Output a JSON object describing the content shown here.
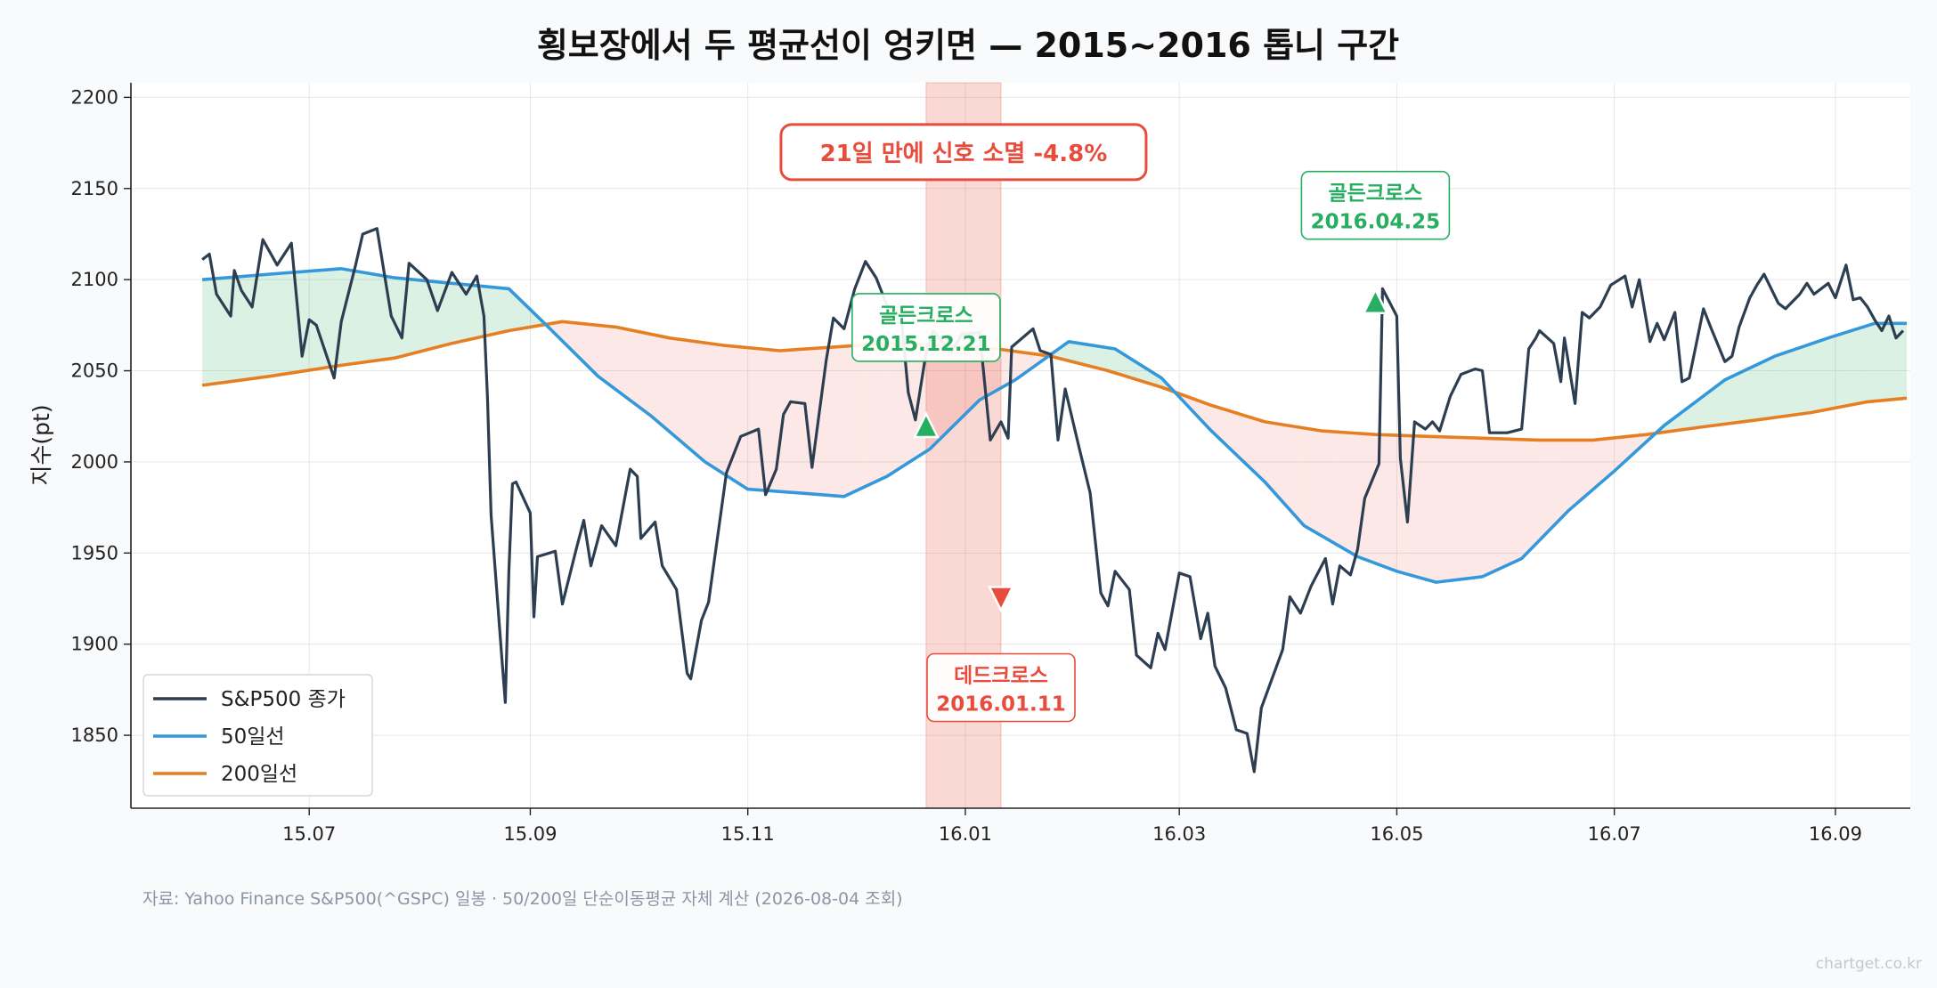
{
  "chart_data": {
    "type": "line",
    "title": "횡보장에서 두 평균선이 엉키면 — 2015~2016 톱니 구간",
    "ylabel": "지수(pt)",
    "ylim": [
      1810,
      2208
    ],
    "xlim": [
      "2015-05-12",
      "2016-09-22"
    ],
    "yticks": [
      1850,
      1900,
      1950,
      2000,
      2050,
      2100,
      2150,
      2200
    ],
    "xticks": [
      {
        "date": "2015-07-01",
        "label": "15.07"
      },
      {
        "date": "2015-09-01",
        "label": "15.09"
      },
      {
        "date": "2015-11-01",
        "label": "15.11"
      },
      {
        "date": "2016-01-01",
        "label": "16.01"
      },
      {
        "date": "2016-03-01",
        "label": "16.03"
      },
      {
        "date": "2016-05-01",
        "label": "16.05"
      },
      {
        "date": "2016-07-01",
        "label": "16.07"
      },
      {
        "date": "2016-09-01",
        "label": "16.09"
      }
    ],
    "grid": true,
    "legend_position": "lower-left",
    "series": [
      {
        "name": "S&P500 종가",
        "color": "#2c3e50",
        "points": [
          [
            "2015-06-01",
            2111
          ],
          [
            "2015-06-03",
            2114
          ],
          [
            "2015-06-05",
            2092
          ],
          [
            "2015-06-09",
            2080
          ],
          [
            "2015-06-10",
            2105
          ],
          [
            "2015-06-12",
            2094
          ],
          [
            "2015-06-15",
            2085
          ],
          [
            "2015-06-18",
            2122
          ],
          [
            "2015-06-22",
            2108
          ],
          [
            "2015-06-26",
            2120
          ],
          [
            "2015-06-29",
            2058
          ],
          [
            "2015-07-01",
            2078
          ],
          [
            "2015-07-03",
            2075
          ],
          [
            "2015-07-08",
            2046
          ],
          [
            "2015-07-10",
            2077
          ],
          [
            "2015-07-14",
            2108
          ],
          [
            "2015-07-16",
            2125
          ],
          [
            "2015-07-20",
            2128
          ],
          [
            "2015-07-24",
            2080
          ],
          [
            "2015-07-27",
            2068
          ],
          [
            "2015-07-29",
            2109
          ],
          [
            "2015-08-03",
            2100
          ],
          [
            "2015-08-06",
            2083
          ],
          [
            "2015-08-10",
            2104
          ],
          [
            "2015-08-14",
            2092
          ],
          [
            "2015-08-17",
            2102
          ],
          [
            "2015-08-19",
            2080
          ],
          [
            "2015-08-20",
            2035
          ],
          [
            "2015-08-21",
            1971
          ],
          [
            "2015-08-24",
            1893
          ],
          [
            "2015-08-25",
            1868
          ],
          [
            "2015-08-26",
            1940
          ],
          [
            "2015-08-27",
            1988
          ],
          [
            "2015-08-28",
            1989
          ],
          [
            "2015-09-01",
            1972
          ],
          [
            "2015-09-02",
            1915
          ],
          [
            "2015-09-03",
            1948
          ],
          [
            "2015-09-08",
            1951
          ],
          [
            "2015-09-10",
            1922
          ],
          [
            "2015-09-14",
            1953
          ],
          [
            "2015-09-16",
            1968
          ],
          [
            "2015-09-18",
            1943
          ],
          [
            "2015-09-21",
            1965
          ],
          [
            "2015-09-25",
            1954
          ],
          [
            "2015-09-29",
            1996
          ],
          [
            "2015-10-01",
            1992
          ],
          [
            "2015-10-02",
            1958
          ],
          [
            "2015-10-06",
            1967
          ],
          [
            "2015-10-08",
            1943
          ],
          [
            "2015-10-12",
            1930
          ],
          [
            "2015-10-15",
            1884
          ],
          [
            "2015-10-16",
            1881
          ],
          [
            "2015-10-19",
            1913
          ],
          [
            "2015-10-21",
            1923
          ],
          [
            "2015-10-26",
            1994
          ],
          [
            "2015-10-30",
            2014
          ],
          [
            "2015-11-04",
            2018
          ],
          [
            "2015-11-06",
            1982
          ],
          [
            "2015-11-09",
            1996
          ],
          [
            "2015-11-11",
            2026
          ],
          [
            "2015-11-13",
            2033
          ],
          [
            "2015-11-17",
            2032
          ],
          [
            "2015-11-19",
            1997
          ],
          [
            "2015-11-23",
            2056
          ],
          [
            "2015-11-25",
            2079
          ],
          [
            "2015-11-28",
            2073
          ],
          [
            "2015-12-01",
            2095
          ],
          [
            "2015-12-04",
            2110
          ],
          [
            "2015-12-07",
            2101
          ],
          [
            "2015-12-10",
            2086
          ],
          [
            "2015-12-14",
            2080
          ],
          [
            "2015-12-16",
            2038
          ],
          [
            "2015-12-18",
            2023
          ],
          [
            "2015-12-21",
            2060
          ],
          [
            "2015-12-23",
            2072
          ],
          [
            "2015-12-28",
            2060
          ],
          [
            "2015-12-31",
            2070
          ],
          [
            "2016-01-05",
            2071
          ],
          [
            "2016-01-08",
            2012
          ],
          [
            "2016-01-11",
            2022
          ],
          [
            "2016-01-13",
            2013
          ],
          [
            "2016-01-14",
            2063
          ],
          [
            "2016-01-20",
            2073
          ],
          [
            "2016-01-22",
            2061
          ],
          [
            "2016-01-25",
            2059
          ],
          [
            "2016-01-27",
            2012
          ],
          [
            "2016-01-29",
            2040
          ],
          [
            "2016-02-02",
            2007
          ],
          [
            "2016-02-05",
            1983
          ],
          [
            "2016-02-08",
            1928
          ],
          [
            "2016-02-10",
            1921
          ],
          [
            "2016-02-12",
            1940
          ],
          [
            "2016-02-16",
            1930
          ],
          [
            "2016-02-18",
            1894
          ],
          [
            "2016-02-22",
            1887
          ],
          [
            "2016-02-24",
            1906
          ],
          [
            "2016-02-26",
            1897
          ],
          [
            "2016-03-01",
            1939
          ],
          [
            "2016-03-04",
            1937
          ],
          [
            "2016-03-07",
            1903
          ],
          [
            "2016-03-09",
            1917
          ],
          [
            "2016-03-11",
            1888
          ],
          [
            "2016-03-14",
            1876
          ],
          [
            "2016-03-17",
            1853
          ],
          [
            "2016-03-20",
            1851
          ],
          [
            "2016-03-22",
            1830
          ],
          [
            "2016-03-24",
            1865
          ],
          [
            "2016-03-30",
            1897
          ],
          [
            "2016-04-01",
            1926
          ],
          [
            "2016-04-04",
            1917
          ],
          [
            "2016-04-07",
            1932
          ],
          [
            "2016-04-11",
            1947
          ],
          [
            "2016-04-13",
            1922
          ],
          [
            "2016-04-15",
            1943
          ],
          [
            "2016-04-18",
            1938
          ],
          [
            "2016-04-20",
            1952
          ],
          [
            "2016-04-22",
            1980
          ],
          [
            "2016-04-26",
            1999
          ],
          [
            "2016-05-02",
            2002
          ],
          [
            "2016-05-04",
            1967
          ],
          [
            "2016-05-06",
            2022
          ],
          [
            "2016-05-09",
            2018
          ],
          [
            "2016-05-11",
            2022
          ],
          [
            "2016-05-13",
            2017
          ],
          [
            "2016-05-16",
            2036
          ],
          [
            "2016-05-19",
            2048
          ],
          [
            "2016-05-23",
            2051
          ],
          [
            "2016-05-25",
            2050
          ],
          [
            "2016-05-27",
            2016
          ],
          [
            "2016-06-01",
            2016
          ],
          [
            "2016-06-05",
            2018
          ],
          [
            "2016-06-07",
            2062
          ],
          [
            "2016-06-09",
            2068
          ],
          [
            "2016-06-10",
            2072
          ],
          [
            "2016-06-14",
            2065
          ],
          [
            "2016-06-16",
            2044
          ],
          [
            "2016-06-17",
            2068
          ],
          [
            "2016-06-20",
            2032
          ],
          [
            "2016-06-22",
            2082
          ],
          [
            "2016-06-24",
            2079
          ],
          [
            "2016-06-27",
            2085
          ],
          [
            "2016-06-30",
            2097
          ],
          [
            "2016-07-04",
            2102
          ],
          [
            "2016-07-06",
            2085
          ],
          [
            "2016-07-08",
            2100
          ],
          [
            "2016-07-11",
            2066
          ],
          [
            "2016-07-13",
            2076
          ],
          [
            "2016-07-15",
            2067
          ],
          [
            "2016-07-18",
            2082
          ],
          [
            "2016-07-20",
            2044
          ],
          [
            "2016-07-22",
            2046
          ],
          [
            "2016-07-26",
            2084
          ],
          [
            "2016-07-28",
            2074
          ],
          [
            "2016-08-01",
            2055
          ],
          [
            "2016-08-03",
            2058
          ],
          [
            "2016-08-05",
            2074
          ],
          [
            "2016-08-08",
            2090
          ],
          [
            "2016-08-10",
            2097
          ],
          [
            "2016-08-12",
            2103
          ],
          [
            "2016-08-16",
            2087
          ],
          [
            "2016-08-18",
            2084
          ],
          [
            "2016-08-22",
            2092
          ],
          [
            "2016-08-24",
            2098
          ],
          [
            "2016-08-26",
            2092
          ],
          [
            "2016-08-30",
            2098
          ],
          [
            "2016-09-01",
            2090
          ],
          [
            "2016-09-04",
            2108
          ],
          [
            "2016-09-06",
            2089
          ],
          [
            "2016-09-08",
            2090
          ],
          [
            "2016-09-10",
            2085
          ],
          [
            "2016-09-12",
            2078
          ],
          [
            "2016-09-14",
            2072
          ],
          [
            "2016-09-16",
            2080
          ],
          [
            "2016-09-18",
            2068
          ],
          [
            "2016-09-20",
            2072
          ],
          [
            "2016-04-27",
            2095
          ],
          [
            "2016-05-01",
            2080
          ]
        ]
      },
      {
        "name": "50일선",
        "color": "#3498db",
        "points": [
          [
            "2015-06-01",
            2100
          ],
          [
            "2015-06-20",
            2103
          ],
          [
            "2015-07-10",
            2106
          ],
          [
            "2015-07-25",
            2101
          ],
          [
            "2015-08-10",
            2098
          ],
          [
            "2015-08-26",
            2095
          ],
          [
            "2015-09-05",
            2076
          ],
          [
            "2015-09-20",
            2047
          ],
          [
            "2015-10-05",
            2025
          ],
          [
            "2015-10-20",
            2000
          ],
          [
            "2015-11-01",
            1985
          ],
          [
            "2015-11-15",
            1983
          ],
          [
            "2015-11-28",
            1981
          ],
          [
            "2015-12-10",
            1992
          ],
          [
            "2015-12-22",
            2007
          ],
          [
            "2016-01-05",
            2034
          ],
          [
            "2016-01-15",
            2045
          ],
          [
            "2016-01-30",
            2066
          ],
          [
            "2016-02-12",
            2062
          ],
          [
            "2016-02-25",
            2046
          ],
          [
            "2016-03-10",
            2017
          ],
          [
            "2016-03-25",
            1989
          ],
          [
            "2016-04-05",
            1965
          ],
          [
            "2016-04-20",
            1948
          ],
          [
            "2016-05-01",
            1940
          ],
          [
            "2016-05-12",
            1934
          ],
          [
            "2016-05-25",
            1937
          ],
          [
            "2016-06-05",
            1947
          ],
          [
            "2016-06-18",
            1973
          ],
          [
            "2016-07-01",
            1995
          ],
          [
            "2016-07-15",
            2020
          ],
          [
            "2016-08-01",
            2045
          ],
          [
            "2016-08-15",
            2058
          ],
          [
            "2016-08-30",
            2068
          ],
          [
            "2016-09-12",
            2076
          ],
          [
            "2016-09-21",
            2076
          ]
        ]
      },
      {
        "name": "200일선",
        "color": "#e67e22",
        "points": [
          [
            "2015-06-01",
            2042
          ],
          [
            "2015-06-20",
            2047
          ],
          [
            "2015-07-10",
            2053
          ],
          [
            "2015-07-25",
            2057
          ],
          [
            "2015-08-10",
            2065
          ],
          [
            "2015-08-26",
            2072
          ],
          [
            "2015-09-10",
            2077
          ],
          [
            "2015-09-25",
            2074
          ],
          [
            "2015-10-10",
            2068
          ],
          [
            "2015-10-25",
            2064
          ],
          [
            "2015-11-10",
            2061
          ],
          [
            "2015-11-25",
            2063
          ],
          [
            "2015-12-10",
            2065
          ],
          [
            "2015-12-25",
            2064
          ],
          [
            "2016-01-10",
            2062
          ],
          [
            "2016-01-25",
            2058
          ],
          [
            "2016-02-10",
            2050
          ],
          [
            "2016-02-25",
            2041
          ],
          [
            "2016-03-10",
            2031
          ],
          [
            "2016-03-25",
            2022
          ],
          [
            "2016-04-10",
            2017
          ],
          [
            "2016-04-25",
            2015
          ],
          [
            "2016-05-10",
            2014
          ],
          [
            "2016-05-25",
            2013
          ],
          [
            "2016-06-10",
            2012
          ],
          [
            "2016-06-25",
            2012
          ],
          [
            "2016-07-10",
            2015
          ],
          [
            "2016-07-25",
            2019
          ],
          [
            "2016-08-10",
            2023
          ],
          [
            "2016-08-25",
            2027
          ],
          [
            "2016-09-10",
            2033
          ],
          [
            "2016-09-21",
            2035
          ]
        ]
      }
    ],
    "shaded_region": {
      "start": "2015-12-21",
      "end": "2016-01-11"
    },
    "annotations": [
      {
        "kind": "golden",
        "date": "2015-12-21",
        "marker_y": 2020,
        "label_line1": "골든크로스",
        "label_line2": "2015.12.21",
        "color": "#27ae60"
      },
      {
        "kind": "dead",
        "date": "2016-01-11",
        "marker_y": 1925,
        "label_line1": "데드크로스",
        "label_line2": "2016.01.11",
        "color": "#e74c3c"
      },
      {
        "kind": "golden",
        "date": "2016-04-25",
        "marker_y": 2088,
        "label_line1": "골든크로스",
        "label_line2": "2016.04.25",
        "color": "#27ae60"
      }
    ],
    "banner": {
      "text": "21일 만에 신호 소멸  -4.8%",
      "color": "#e74c3c"
    },
    "fill_colors": {
      "above": "#27ae60",
      "below": "#e74c3c"
    }
  },
  "footer": {
    "source": "자료: Yahoo Finance S&P500(^GSPC) 일봉 · 50/200일 단순이동평균 자체 계산 (2026-08-04 조회)",
    "credit": "chartget.co.kr"
  }
}
